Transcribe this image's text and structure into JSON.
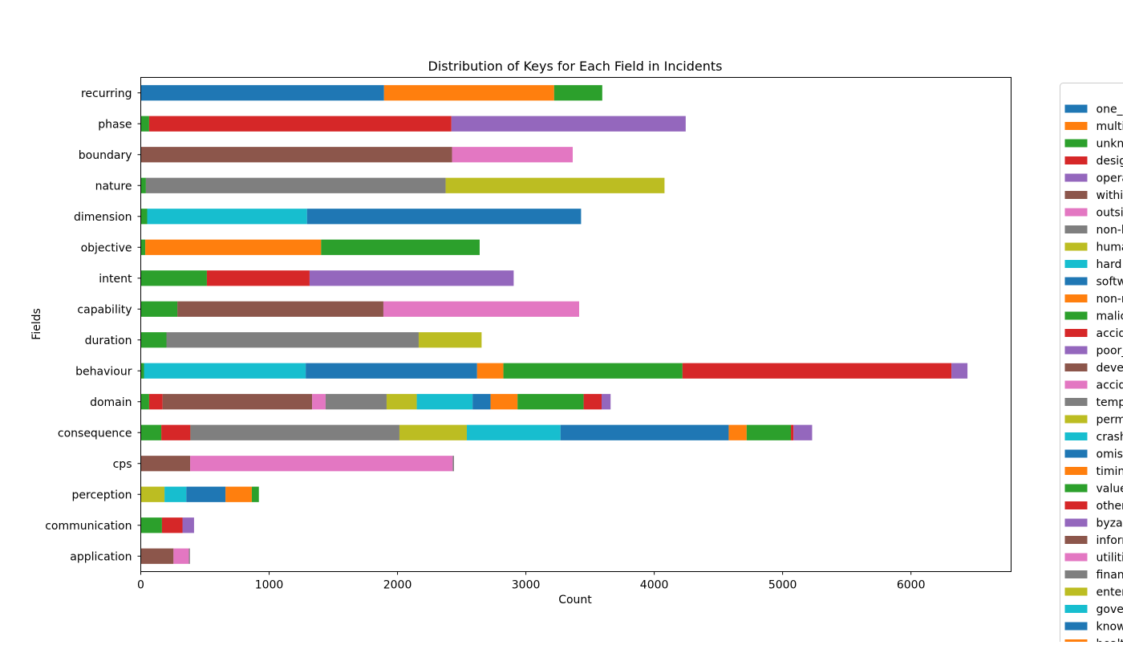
{
  "chart_data": {
    "type": "bar",
    "orientation": "horizontal",
    "stacked": true,
    "title": "Distribution of Keys for Each Field in Incidents",
    "xlabel": "Count",
    "ylabel": "Fields",
    "xlim": [
      0,
      6780
    ],
    "xticks": [
      0,
      1000,
      2000,
      3000,
      4000,
      5000,
      6000
    ],
    "grid": false,
    "legend_position": "right (clipped at edge)",
    "palette": [
      "#1f77b4",
      "#ff7f0e",
      "#2ca02c",
      "#d62728",
      "#9467bd",
      "#8c564b",
      "#e377c2",
      "#7f7f7f",
      "#bcbd22",
      "#17becf"
    ],
    "categories": [
      "application",
      "communication",
      "perception",
      "cps",
      "consequence",
      "domain",
      "behaviour",
      "duration",
      "capability",
      "intent",
      "objective",
      "dimension",
      "nature",
      "boundary",
      "phase",
      "recurring"
    ],
    "series": [
      {
        "name": "one_",
        "values": [
          0,
          0,
          0,
          0,
          0,
          0,
          0,
          0,
          0,
          0,
          0,
          0,
          0,
          0,
          0,
          1895
        ]
      },
      {
        "name": "multi",
        "values": [
          0,
          0,
          0,
          0,
          0,
          0,
          0,
          0,
          0,
          0,
          0,
          0,
          0,
          0,
          0,
          1325
        ]
      },
      {
        "name": "unkn",
        "values": [
          0,
          0,
          0,
          0,
          0,
          0,
          0,
          0,
          0,
          0,
          0,
          0,
          0,
          0,
          65,
          375
        ]
      },
      {
        "name": "desig",
        "values": [
          0,
          0,
          0,
          0,
          0,
          0,
          0,
          0,
          0,
          0,
          0,
          0,
          0,
          0,
          2355,
          0
        ]
      },
      {
        "name": "opera",
        "values": [
          0,
          0,
          0,
          0,
          0,
          0,
          0,
          0,
          0,
          0,
          0,
          0,
          0,
          0,
          1825,
          0
        ]
      },
      {
        "name": "withi",
        "values": [
          0,
          0,
          0,
          0,
          0,
          0,
          0,
          0,
          0,
          0,
          0,
          0,
          0,
          2425,
          0,
          0
        ]
      },
      {
        "name": "outsi",
        "values": [
          0,
          0,
          0,
          0,
          0,
          0,
          0,
          0,
          0,
          0,
          0,
          0,
          0,
          940,
          0,
          0
        ]
      },
      {
        "name": "non-h",
        "values": [
          0,
          0,
          0,
          0,
          0,
          0,
          0,
          0,
          0,
          0,
          0,
          0,
          2335,
          0,
          0,
          0
        ]
      },
      {
        "name": "huma",
        "values": [
          0,
          0,
          0,
          0,
          0,
          0,
          0,
          0,
          0,
          0,
          0,
          0,
          1705,
          0,
          0,
          0
        ]
      },
      {
        "name": "hard",
        "values": [
          0,
          0,
          0,
          0,
          0,
          0,
          0,
          1245,
          0,
          0,
          0,
          0,
          0,
          0,
          0,
          0
        ]
      },
      {
        "name": "softw",
        "values": [
          0,
          0,
          0,
          0,
          0,
          0,
          0,
          2135,
          0,
          0,
          0,
          0,
          0,
          0,
          0,
          0
        ]
      },
      {
        "name": "non-r",
        "values": [
          0,
          0,
          0,
          0,
          0,
          0,
          0,
          0,
          0,
          0,
          1370,
          0,
          0,
          0,
          0,
          0
        ]
      },
      {
        "name": "malic",
        "values": [
          0,
          0,
          0,
          0,
          0,
          0,
          0,
          0,
          0,
          0,
          1235,
          0,
          0,
          0,
          0,
          0
        ]
      },
      {
        "name": "accid",
        "values": [
          0,
          0,
          0,
          0,
          0,
          0,
          0,
          0,
          0,
          800,
          0,
          0,
          0,
          0,
          0,
          0
        ]
      },
      {
        "name": "poor_",
        "values": [
          0,
          0,
          0,
          0,
          0,
          0,
          0,
          0,
          0,
          1590,
          0,
          0,
          0,
          0,
          0,
          0
        ]
      },
      {
        "name": "deve",
        "values": [
          0,
          0,
          0,
          0,
          0,
          0,
          0,
          0,
          1605,
          0,
          0,
          0,
          0,
          0,
          0,
          0
        ]
      },
      {
        "name": "accid",
        "values": [
          0,
          0,
          0,
          0,
          0,
          0,
          0,
          0,
          1525,
          0,
          0,
          0,
          0,
          0,
          0,
          0
        ]
      },
      {
        "name": "temp",
        "values": [
          0,
          0,
          0,
          0,
          0,
          0,
          0,
          1965,
          0,
          0,
          0,
          0,
          0,
          0,
          0,
          0
        ]
      },
      {
        "name": "perm",
        "values": [
          0,
          0,
          0,
          0,
          0,
          0,
          0,
          490,
          0,
          0,
          0,
          0,
          0,
          0,
          0,
          0
        ]
      },
      {
        "name": "crash",
        "values": [
          0,
          0,
          0,
          0,
          0,
          0,
          1260,
          0,
          0,
          0,
          0,
          0,
          0,
          0,
          0,
          0
        ]
      },
      {
        "name": "omiss",
        "values": [
          0,
          0,
          0,
          0,
          0,
          0,
          1335,
          0,
          0,
          0,
          0,
          0,
          0,
          0,
          0,
          0
        ]
      },
      {
        "name": "timin",
        "values": [
          0,
          0,
          0,
          0,
          0,
          0,
          205,
          0,
          0,
          0,
          0,
          0,
          0,
          0,
          0,
          0
        ]
      },
      {
        "name": "value",
        "values": [
          0,
          0,
          0,
          0,
          0,
          0,
          1395,
          0,
          0,
          0,
          0,
          0,
          0,
          0,
          0,
          0
        ]
      },
      {
        "name": "other",
        "values": [
          0,
          0,
          0,
          0,
          0,
          0,
          2095,
          0,
          0,
          0,
          0,
          0,
          0,
          0,
          0,
          0
        ]
      },
      {
        "name": "byzar",
        "values": [
          0,
          0,
          0,
          0,
          0,
          0,
          125,
          0,
          0,
          0,
          0,
          0,
          0,
          0,
          0,
          0
        ]
      },
      {
        "name": "inforr",
        "values": [
          0,
          0,
          0,
          0,
          0,
          1165,
          0,
          0,
          0,
          0,
          0,
          0,
          0,
          0,
          0,
          0
        ]
      },
      {
        "name": "utiliti",
        "values": [
          0,
          0,
          0,
          0,
          0,
          105,
          0,
          0,
          0,
          0,
          0,
          0,
          0,
          0,
          0,
          0
        ]
      },
      {
        "name": "finan",
        "values": [
          0,
          0,
          0,
          0,
          0,
          475,
          0,
          0,
          0,
          0,
          0,
          0,
          0,
          0,
          0,
          0
        ]
      },
      {
        "name": "enter",
        "values": [
          0,
          0,
          0,
          0,
          0,
          235,
          0,
          0,
          0,
          0,
          0,
          0,
          0,
          0,
          0,
          0
        ]
      },
      {
        "name": "gove",
        "values": [
          0,
          0,
          0,
          0,
          0,
          435,
          0,
          0,
          0,
          0,
          0,
          0,
          0,
          0,
          0,
          0
        ]
      },
      {
        "name": "know",
        "values": [
          0,
          0,
          0,
          0,
          0,
          140,
          0,
          0,
          0,
          0,
          0,
          0,
          0,
          0,
          0,
          0
        ]
      },
      {
        "name": "healt",
        "values": [
          0,
          0,
          0,
          0,
          0,
          210,
          0,
          0,
          0,
          0,
          0,
          0,
          0,
          0,
          0,
          0
        ]
      }
    ],
    "segments": [
      {
        "field": "application",
        "parts": [
          {
            "v": 255,
            "c": "#8c564b"
          },
          {
            "v": 120,
            "c": "#e377c2"
          },
          {
            "v": 8,
            "c": "#7f7f7f"
          }
        ]
      },
      {
        "field": "communication",
        "parts": [
          {
            "v": 165,
            "c": "#2ca02c"
          },
          {
            "v": 160,
            "c": "#d62728"
          },
          {
            "v": 90,
            "c": "#9467bd"
          }
        ]
      },
      {
        "field": "perception",
        "parts": [
          {
            "v": 185,
            "c": "#bcbd22"
          },
          {
            "v": 170,
            "c": "#17becf"
          },
          {
            "v": 305,
            "c": "#1f77b4"
          },
          {
            "v": 205,
            "c": "#ff7f0e"
          },
          {
            "v": 55,
            "c": "#2ca02c"
          }
        ]
      },
      {
        "field": "cps",
        "parts": [
          {
            "v": 385,
            "c": "#8c564b"
          },
          {
            "v": 2045,
            "c": "#e377c2"
          },
          {
            "v": 10,
            "c": "#7f7f7f"
          }
        ]
      },
      {
        "field": "consequence",
        "parts": [
          {
            "v": 160,
            "c": "#2ca02c"
          },
          {
            "v": 225,
            "c": "#d62728"
          },
          {
            "v": 5,
            "c": "#8c564b"
          },
          {
            "v": 1625,
            "c": "#7f7f7f"
          },
          {
            "v": 525,
            "c": "#bcbd22"
          },
          {
            "v": 730,
            "c": "#17becf"
          },
          {
            "v": 1310,
            "c": "#1f77b4"
          },
          {
            "v": 140,
            "c": "#ff7f0e"
          },
          {
            "v": 345,
            "c": "#2ca02c"
          },
          {
            "v": 20,
            "c": "#d62728"
          },
          {
            "v": 145,
            "c": "#9467bd"
          }
        ]
      },
      {
        "field": "domain",
        "parts": [
          {
            "v": 65,
            "c": "#2ca02c"
          },
          {
            "v": 105,
            "c": "#d62728"
          },
          {
            "v": 1165,
            "c": "#8c564b"
          },
          {
            "v": 105,
            "c": "#e377c2"
          },
          {
            "v": 475,
            "c": "#7f7f7f"
          },
          {
            "v": 235,
            "c": "#bcbd22"
          },
          {
            "v": 435,
            "c": "#17becf"
          },
          {
            "v": 140,
            "c": "#1f77b4"
          },
          {
            "v": 210,
            "c": "#ff7f0e"
          },
          {
            "v": 515,
            "c": "#2ca02c"
          },
          {
            "v": 140,
            "c": "#d62728"
          },
          {
            "v": 70,
            "c": "#9467bd"
          }
        ]
      },
      {
        "field": "behaviour",
        "parts": [
          {
            "v": 25,
            "c": "#2ca02c"
          },
          {
            "v": 1260,
            "c": "#17becf"
          },
          {
            "v": 1335,
            "c": "#1f77b4"
          },
          {
            "v": 205,
            "c": "#ff7f0e"
          },
          {
            "v": 1395,
            "c": "#2ca02c"
          },
          {
            "v": 2095,
            "c": "#d62728"
          },
          {
            "v": 125,
            "c": "#9467bd"
          }
        ]
      },
      {
        "field": "duration",
        "parts": [
          {
            "v": 200,
            "c": "#2ca02c"
          },
          {
            "v": 1965,
            "c": "#7f7f7f"
          },
          {
            "v": 490,
            "c": "#bcbd22"
          }
        ]
      },
      {
        "field": "capability",
        "parts": [
          {
            "v": 285,
            "c": "#2ca02c"
          },
          {
            "v": 1605,
            "c": "#8c564b"
          },
          {
            "v": 1525,
            "c": "#e377c2"
          }
        ]
      },
      {
        "field": "intent",
        "parts": [
          {
            "v": 515,
            "c": "#2ca02c"
          },
          {
            "v": 800,
            "c": "#d62728"
          },
          {
            "v": 1590,
            "c": "#9467bd"
          }
        ]
      },
      {
        "field": "objective",
        "parts": [
          {
            "v": 35,
            "c": "#2ca02c"
          },
          {
            "v": 1370,
            "c": "#ff7f0e"
          },
          {
            "v": 1235,
            "c": "#2ca02c"
          }
        ]
      },
      {
        "field": "dimension",
        "parts": [
          {
            "v": 50,
            "c": "#2ca02c"
          },
          {
            "v": 1245,
            "c": "#17becf"
          },
          {
            "v": 2135,
            "c": "#1f77b4"
          }
        ]
      },
      {
        "field": "nature",
        "parts": [
          {
            "v": 40,
            "c": "#2ca02c"
          },
          {
            "v": 2335,
            "c": "#7f7f7f"
          },
          {
            "v": 1705,
            "c": "#bcbd22"
          }
        ]
      },
      {
        "field": "boundary",
        "parts": [
          {
            "v": 2425,
            "c": "#8c564b"
          },
          {
            "v": 940,
            "c": "#e377c2"
          }
        ]
      },
      {
        "field": "phase",
        "parts": [
          {
            "v": 65,
            "c": "#2ca02c"
          },
          {
            "v": 2355,
            "c": "#d62728"
          },
          {
            "v": 1825,
            "c": "#9467bd"
          }
        ]
      },
      {
        "field": "recurring",
        "parts": [
          {
            "v": 1895,
            "c": "#1f77b4"
          },
          {
            "v": 1325,
            "c": "#ff7f0e"
          },
          {
            "v": 375,
            "c": "#2ca02c"
          }
        ]
      }
    ],
    "legend": [
      {
        "label": "one_",
        "color": "#1f77b4"
      },
      {
        "label": "multi",
        "color": "#ff7f0e"
      },
      {
        "label": "unkn",
        "color": "#2ca02c"
      },
      {
        "label": "desig",
        "color": "#d62728"
      },
      {
        "label": "opera",
        "color": "#9467bd"
      },
      {
        "label": "withi",
        "color": "#8c564b"
      },
      {
        "label": "outsi",
        "color": "#e377c2"
      },
      {
        "label": "non-h",
        "color": "#7f7f7f"
      },
      {
        "label": "huma",
        "color": "#bcbd22"
      },
      {
        "label": "hard",
        "color": "#17becf"
      },
      {
        "label": "softw",
        "color": "#1f77b4"
      },
      {
        "label": "non-r",
        "color": "#ff7f0e"
      },
      {
        "label": "malic",
        "color": "#2ca02c"
      },
      {
        "label": "accid",
        "color": "#d62728"
      },
      {
        "label": "poor_",
        "color": "#9467bd"
      },
      {
        "label": "deve",
        "color": "#8c564b"
      },
      {
        "label": "accid",
        "color": "#e377c2"
      },
      {
        "label": "temp",
        "color": "#7f7f7f"
      },
      {
        "label": "perm",
        "color": "#bcbd22"
      },
      {
        "label": "crash",
        "color": "#17becf"
      },
      {
        "label": "omiss",
        "color": "#1f77b4"
      },
      {
        "label": "timin",
        "color": "#ff7f0e"
      },
      {
        "label": "value",
        "color": "#2ca02c"
      },
      {
        "label": "other",
        "color": "#d62728"
      },
      {
        "label": "byzar",
        "color": "#9467bd"
      },
      {
        "label": "inforr",
        "color": "#8c564b"
      },
      {
        "label": "utiliti",
        "color": "#e377c2"
      },
      {
        "label": "finan",
        "color": "#7f7f7f"
      },
      {
        "label": "enter",
        "color": "#bcbd22"
      },
      {
        "label": "gove",
        "color": "#17becf"
      },
      {
        "label": "know",
        "color": "#1f77b4"
      },
      {
        "label": "healt",
        "color": "#ff7f0e"
      }
    ]
  }
}
